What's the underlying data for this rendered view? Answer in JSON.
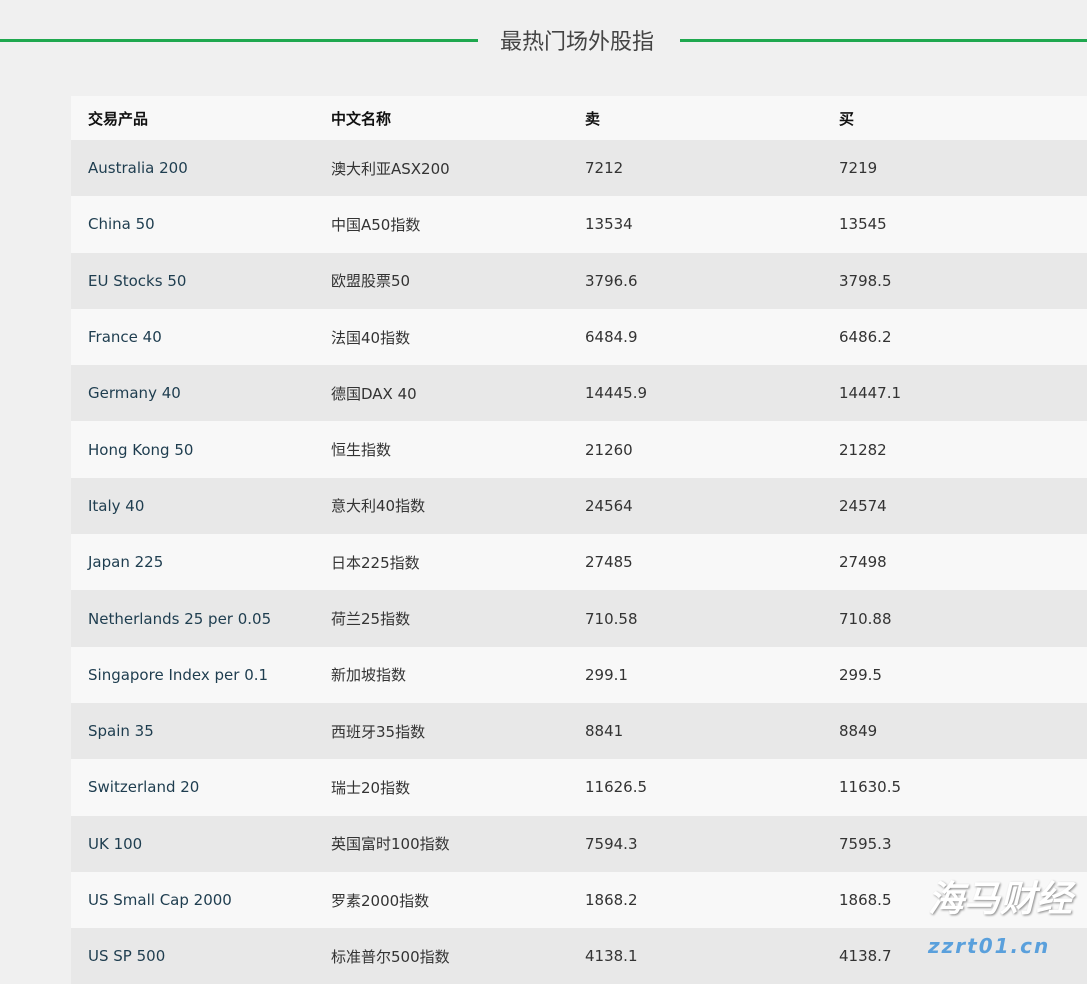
{
  "title": "最热门场外股指",
  "columns": [
    "交易产品",
    "中文名称",
    "卖",
    "买"
  ],
  "rows": [
    [
      "Australia 200",
      "澳大利亚ASX200",
      "7212",
      "7219"
    ],
    [
      "China 50",
      "中国A50指数",
      "13534",
      "13545"
    ],
    [
      "EU Stocks 50",
      "欧盟股票50",
      "3796.6",
      "3798.5"
    ],
    [
      "France 40",
      "法国40指数",
      "6484.9",
      "6486.2"
    ],
    [
      "Germany 40",
      "德国DAX 40",
      "14445.9",
      "14447.1"
    ],
    [
      "Hong Kong 50",
      "恒生指数",
      "21260",
      "21282"
    ],
    [
      "Italy 40",
      "意大利40指数",
      "24564",
      "24574"
    ],
    [
      "Japan 225",
      "日本225指数",
      "27485",
      "27498"
    ],
    [
      "Netherlands 25 per 0.05",
      "荷兰25指数",
      "710.58",
      "710.88"
    ],
    [
      "Singapore Index per 0.1",
      "新加坡指数",
      "299.1",
      "299.5"
    ],
    [
      "Spain 35",
      "西班牙35指数",
      "8841",
      "8849"
    ],
    [
      "Switzerland 20",
      "瑞士20指数",
      "11626.5",
      "11630.5"
    ],
    [
      "UK 100",
      "英国富时100指数",
      "7594.3",
      "7595.3"
    ],
    [
      "US Small Cap 2000",
      "罗素2000指数",
      "1868.2",
      "1868.5"
    ],
    [
      "US SP 500",
      "标准普尔500指数",
      "4138.1",
      "4138.7"
    ]
  ],
  "watermark": {
    "name": "海马财经",
    "site": "zzrt01.cn"
  },
  "colors": {
    "accent": "#1fa84f"
  }
}
